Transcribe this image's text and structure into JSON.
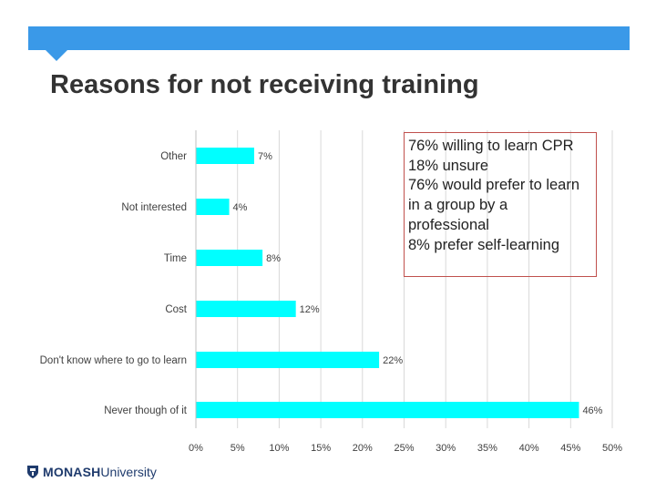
{
  "slide": {
    "title": "Reasons for not receiving training"
  },
  "callout": {
    "line1": "76% willing to learn CPR",
    "line2": "18% unsure",
    "line3": "76% would prefer to learn in a group by a professional",
    "line4": "8% prefer self-learning"
  },
  "logo": {
    "name": "MONASH",
    "suffix": "University",
    "icon": "shield-crest-icon"
  },
  "colors": {
    "bar": "#00ffff",
    "axis_text": "#404040",
    "grid": "#d9d9d9",
    "band": "#3a99e8",
    "callout_border": "#c0504d"
  },
  "chart_data": {
    "type": "bar",
    "orientation": "horizontal",
    "categories": [
      "Other",
      "Not interested",
      "Time",
      "Cost",
      "Don't know where to go to learn",
      "Never though of it"
    ],
    "values": [
      7,
      4,
      8,
      12,
      22,
      46
    ],
    "data_labels": [
      "7%",
      "4%",
      "8%",
      "12%",
      "22%",
      "46%"
    ],
    "xlim": [
      0,
      50
    ],
    "x_ticks": [
      "0%",
      "5%",
      "10%",
      "15%",
      "20%",
      "25%",
      "30%",
      "35%",
      "40%",
      "45%",
      "50%"
    ],
    "title": "",
    "xlabel": "",
    "ylabel": "",
    "grid": true
  }
}
